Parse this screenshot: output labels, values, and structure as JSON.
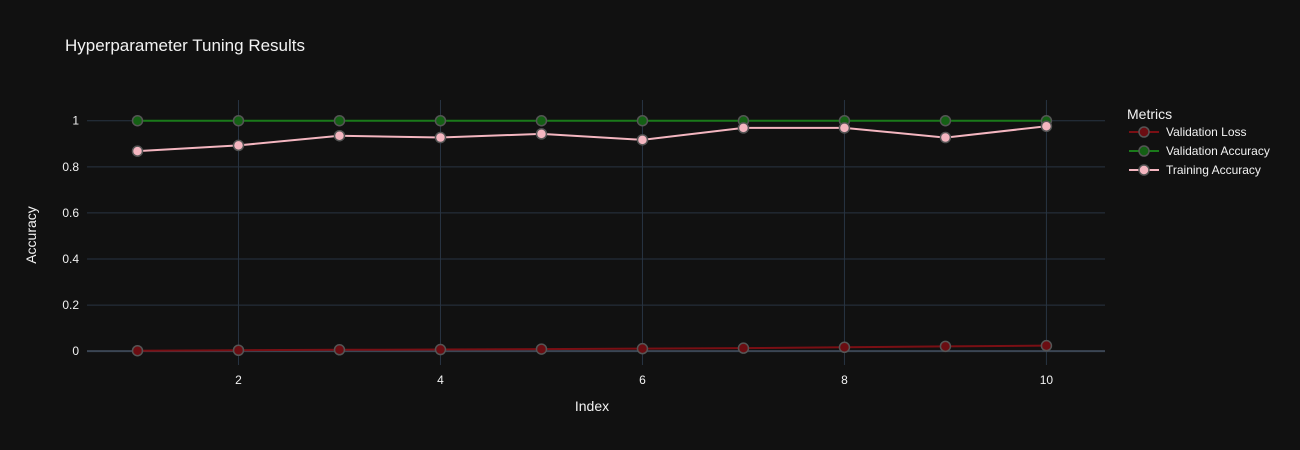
{
  "chart_data": {
    "type": "line",
    "title": "Hyperparameter Tuning Results",
    "xlabel": "Index",
    "ylabel": "Accuracy",
    "x": [
      1,
      2,
      3,
      4,
      5,
      6,
      7,
      8,
      9,
      10
    ],
    "xlim": [
      0.5,
      10.58
    ],
    "ylim": [
      -0.06,
      1.09
    ],
    "xticks": [
      2,
      4,
      6,
      8,
      10
    ],
    "yticks": [
      0,
      0.2,
      0.4,
      0.6,
      0.8,
      1
    ],
    "ytick_labels": [
      "0",
      "0.2",
      "0.4",
      "0.6",
      "0.8",
      "1"
    ],
    "grid": true,
    "legend": {
      "title": "Metrics",
      "position": "top-right"
    },
    "series": [
      {
        "name": "Validation Loss",
        "color": "#7a0f14",
        "marker_fill": "#6b0d12",
        "values": [
          0.002,
          0.004,
          0.006,
          0.007,
          0.009,
          0.011,
          0.013,
          0.017,
          0.021,
          0.024
        ]
      },
      {
        "name": "Validation Accuracy",
        "color": "#1a7a1a",
        "marker_fill": "#146014",
        "values": [
          1,
          1,
          1,
          1,
          1,
          1,
          1,
          1,
          1,
          1
        ]
      },
      {
        "name": "Training Accuracy",
        "color": "#f4b6c0",
        "marker_fill": "#f4b6c0",
        "values": [
          0.868,
          0.893,
          0.935,
          0.927,
          0.943,
          0.917,
          0.969,
          0.969,
          0.927,
          0.976
        ]
      }
    ]
  }
}
